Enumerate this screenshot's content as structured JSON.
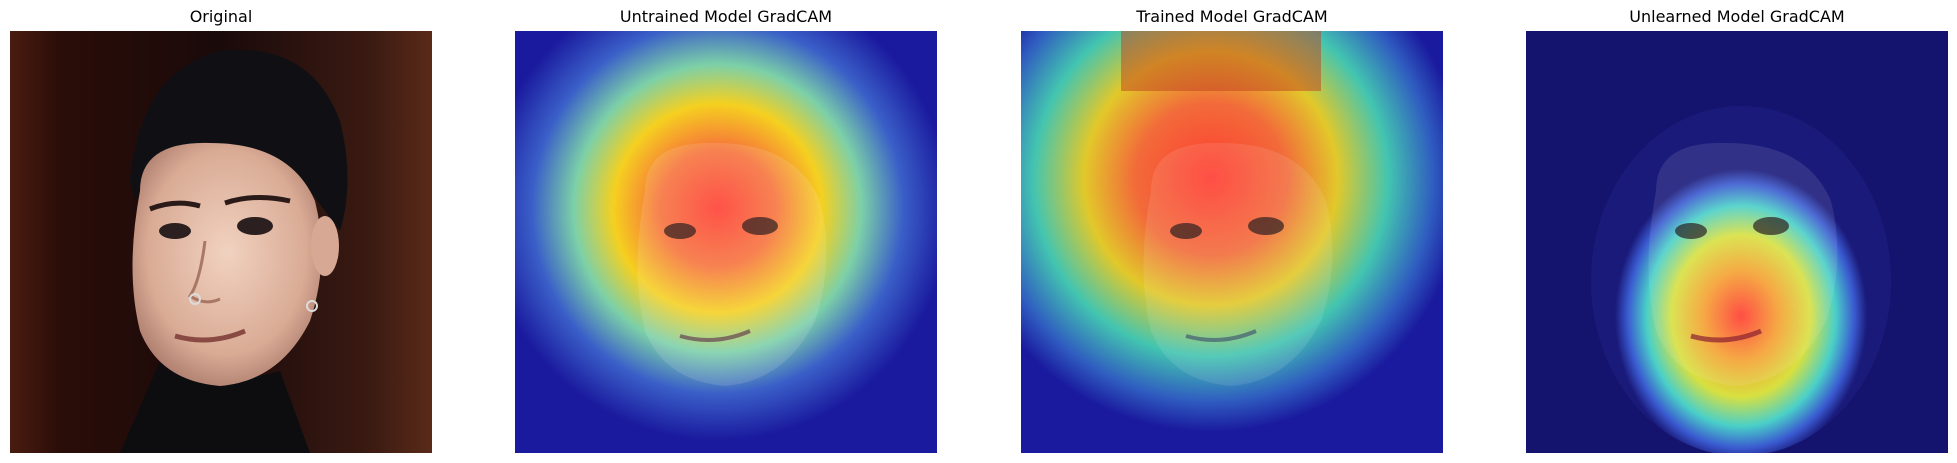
{
  "panels": [
    {
      "title": "Original",
      "image": "original face photo"
    },
    {
      "title": "Untrained Model GradCAM",
      "image": "gradcam heatmap overlay untrained"
    },
    {
      "title": "Trained Model GradCAM",
      "image": "gradcam heatmap overlay trained"
    },
    {
      "title": "Unlearned Model GradCAM",
      "image": "gradcam heatmap overlay unlearned"
    }
  ],
  "colors": {
    "background": "#ffffff",
    "heat_low": "#1a1a9e",
    "heat_mid": "#3fd0c0",
    "heat_high": "#ff3b30",
    "heat_warm": "#f5d020"
  }
}
